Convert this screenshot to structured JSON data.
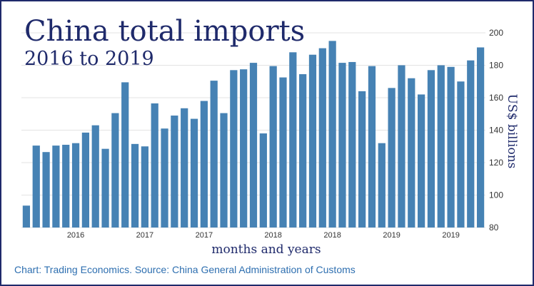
{
  "header": {
    "title": "China total imports",
    "subtitle": "2016 to 2019"
  },
  "footer": {
    "source": "Chart: Trading Economics. Source: China General Administration of Customs"
  },
  "colors": {
    "bar": "#4682b4",
    "text": "#1f2a6b",
    "grid": "#e3e3e3",
    "source": "#2e6fb0"
  },
  "chart_data": {
    "type": "bar",
    "xlabel": "months and years",
    "ylabel": "US$ billions",
    "ylim": [
      80,
      200
    ],
    "yticks": [
      80,
      100,
      120,
      140,
      160,
      180,
      200
    ],
    "y_axis_position": "right",
    "grid": true,
    "x_tick_labels": [
      "2016",
      "2017",
      "2017",
      "2018",
      "2018",
      "2019",
      "2019"
    ],
    "x_tick_bar_index": [
      5,
      12,
      18,
      25,
      31,
      37,
      43
    ],
    "series": [
      {
        "values": [
          93.5,
          130.5,
          126.5,
          130.5,
          131,
          132,
          138.5,
          143,
          128.5,
          150.5,
          169.5,
          131.5,
          130,
          156.5,
          141,
          149,
          153.5,
          147,
          158,
          170.5,
          150.5,
          177,
          177.5,
          181.5,
          138,
          179.5,
          172.5,
          188,
          174.5,
          186.5,
          190.5,
          195,
          181.5,
          182,
          164,
          179.5,
          132,
          166,
          180,
          172,
          162,
          177,
          180,
          179,
          170,
          183,
          191
        ]
      }
    ]
  }
}
